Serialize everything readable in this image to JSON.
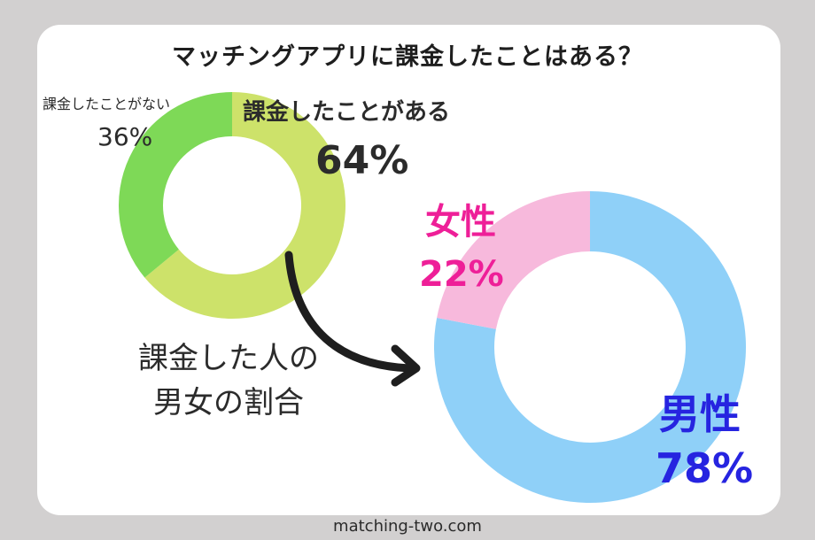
{
  "chart_data": [
    {
      "type": "pie",
      "title": "マッチングアプリに課金したことはある？",
      "slices": [
        {
          "label": "課金したことがある",
          "value": 64,
          "value_text": "64%",
          "color": "#cde26a"
        },
        {
          "label": "課金したことがない",
          "value": 36,
          "value_text": "36%",
          "color": "#7ed957"
        }
      ]
    },
    {
      "type": "pie",
      "title": "課金した人の男女の割合",
      "slices": [
        {
          "label": "男性",
          "value": 78,
          "value_text": "78%",
          "color": "#8fd0f8"
        },
        {
          "label": "女性",
          "value": 22,
          "value_text": "22%",
          "color": "#f7b9dc"
        }
      ]
    }
  ],
  "arrow_text": {
    "line1": "課金した人の",
    "line2": "男女の割合"
  },
  "footer": "matching-two.com"
}
